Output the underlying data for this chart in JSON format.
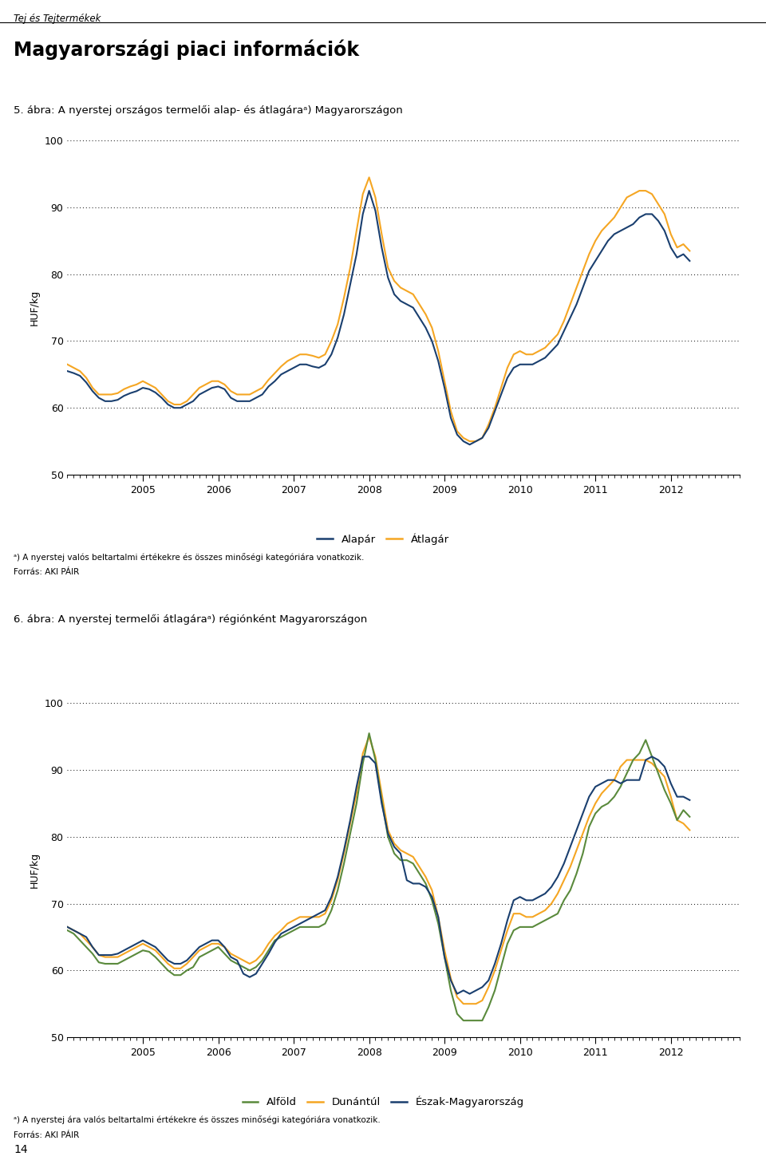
{
  "page_header": "Tej és Tejtermékek",
  "main_title": "Magyarországi piaci információk",
  "chart1_title": "5. ábra: A nyerstej országos termelői alap- és átlagáraᵃ) Magyarországon",
  "chart2_title": "6. ábra: A nyerstej termelői átlagáraᵃ) régiónként Magyarországon",
  "ylabel": "HUF/kg",
  "footnote1a": "ᵃ) A nyerstej valós beltartalmi értékekre és összes minőségi kategóriára vonatkozik.",
  "footnote1b": "Forrás: AKI PÁIR",
  "footnote2a": "ᵃ) A nyerstej ára valós beltartalmi értékekre és összes minőségi kategóriára vonatkozik.",
  "footnote2b": "Forrás: AKI PÁIR",
  "page_number": "14",
  "color_alapar": "#1a3f6f",
  "color_atlagár": "#f5a623",
  "color_alfold": "#5a8a3c",
  "color_dunantul": "#f5a623",
  "color_eszak": "#1a3f6f",
  "xtick_years": [
    2005,
    2006,
    2007,
    2008,
    2009,
    2010,
    2011,
    2012
  ],
  "xlim": [
    2004.0,
    2012.35
  ],
  "ylim": [
    50,
    100
  ],
  "yticks": [
    50,
    60,
    70,
    80,
    90,
    100
  ],
  "grid_yvals": [
    60,
    70,
    80,
    90,
    100
  ],
  "x_years": [
    2004.0,
    2004.0833,
    2004.1667,
    2004.25,
    2004.3333,
    2004.4167,
    2004.5,
    2004.5833,
    2004.6667,
    2004.75,
    2004.8333,
    2004.9167,
    2005.0,
    2005.0833,
    2005.1667,
    2005.25,
    2005.3333,
    2005.4167,
    2005.5,
    2005.5833,
    2005.6667,
    2005.75,
    2005.8333,
    2005.9167,
    2006.0,
    2006.0833,
    2006.1667,
    2006.25,
    2006.3333,
    2006.4167,
    2006.5,
    2006.5833,
    2006.6667,
    2006.75,
    2006.8333,
    2006.9167,
    2007.0,
    2007.0833,
    2007.1667,
    2007.25,
    2007.3333,
    2007.4167,
    2007.5,
    2007.5833,
    2007.6667,
    2007.75,
    2007.8333,
    2007.9167,
    2008.0,
    2008.0833,
    2008.1667,
    2008.25,
    2008.3333,
    2008.4167,
    2008.5,
    2008.5833,
    2008.6667,
    2008.75,
    2008.8333,
    2008.9167,
    2009.0,
    2009.0833,
    2009.1667,
    2009.25,
    2009.3333,
    2009.4167,
    2009.5,
    2009.5833,
    2009.6667,
    2009.75,
    2009.8333,
    2009.9167,
    2010.0,
    2010.0833,
    2010.1667,
    2010.25,
    2010.3333,
    2010.4167,
    2010.5,
    2010.5833,
    2010.6667,
    2010.75,
    2010.8333,
    2010.9167,
    2011.0,
    2011.0833,
    2011.1667,
    2011.25,
    2011.3333,
    2011.4167,
    2011.5,
    2011.5833,
    2011.6667,
    2011.75,
    2011.8333,
    2011.9167,
    2012.0,
    2012.0833,
    2012.1667,
    2012.25
  ],
  "alapar": [
    65.5,
    65.2,
    64.8,
    63.8,
    62.5,
    61.5,
    61.0,
    61.0,
    61.2,
    61.8,
    62.2,
    62.5,
    63.0,
    62.8,
    62.3,
    61.5,
    60.5,
    60.0,
    60.0,
    60.5,
    61.0,
    62.0,
    62.5,
    63.0,
    63.2,
    62.8,
    61.5,
    61.0,
    61.0,
    61.0,
    61.5,
    62.0,
    63.2,
    64.0,
    65.0,
    65.5,
    66.0,
    66.5,
    66.5,
    66.2,
    66.0,
    66.5,
    68.0,
    70.5,
    74.0,
    78.5,
    83.0,
    89.0,
    92.5,
    89.5,
    84.0,
    79.5,
    77.0,
    76.0,
    75.5,
    75.0,
    73.5,
    72.0,
    70.0,
    67.0,
    63.0,
    58.5,
    56.0,
    55.0,
    54.5,
    55.0,
    55.5,
    57.0,
    59.5,
    62.0,
    64.5,
    66.0,
    66.5,
    66.5,
    66.5,
    67.0,
    67.5,
    68.5,
    69.5,
    71.5,
    73.5,
    75.5,
    78.0,
    80.5,
    82.0,
    83.5,
    85.0,
    86.0,
    86.5,
    87.0,
    87.5,
    88.5,
    89.0,
    89.0,
    88.0,
    86.5,
    84.0,
    82.5,
    83.0,
    82.0
  ],
  "atlagár": [
    66.5,
    66.0,
    65.5,
    64.5,
    63.0,
    62.0,
    62.0,
    62.0,
    62.2,
    62.8,
    63.2,
    63.5,
    64.0,
    63.5,
    63.0,
    62.0,
    61.0,
    60.5,
    60.5,
    61.0,
    62.0,
    63.0,
    63.5,
    64.0,
    64.0,
    63.5,
    62.5,
    62.0,
    62.0,
    62.0,
    62.5,
    63.0,
    64.2,
    65.2,
    66.2,
    67.0,
    67.5,
    68.0,
    68.0,
    67.8,
    67.5,
    68.0,
    70.0,
    72.5,
    76.5,
    81.0,
    86.5,
    92.0,
    94.5,
    91.5,
    86.0,
    81.0,
    79.0,
    78.0,
    77.5,
    77.0,
    75.5,
    74.0,
    72.0,
    68.5,
    64.0,
    59.5,
    56.5,
    55.5,
    55.0,
    55.0,
    55.5,
    57.5,
    60.0,
    63.0,
    66.0,
    68.0,
    68.5,
    68.0,
    68.0,
    68.5,
    69.0,
    70.0,
    71.0,
    73.0,
    75.5,
    78.0,
    80.5,
    83.0,
    85.0,
    86.5,
    87.5,
    88.5,
    90.0,
    91.5,
    92.0,
    92.5,
    92.5,
    92.0,
    90.5,
    89.0,
    86.0,
    84.0,
    84.5,
    83.5
  ],
  "alfold": [
    66.0,
    65.5,
    64.5,
    63.5,
    62.5,
    61.2,
    61.0,
    61.0,
    61.0,
    61.5,
    62.0,
    62.5,
    63.0,
    62.8,
    62.0,
    61.0,
    60.0,
    59.3,
    59.3,
    60.0,
    60.5,
    62.0,
    62.5,
    63.0,
    63.5,
    62.5,
    61.5,
    61.0,
    60.5,
    60.0,
    60.5,
    61.5,
    63.0,
    64.5,
    65.0,
    65.5,
    66.0,
    66.5,
    66.5,
    66.5,
    66.5,
    67.0,
    69.0,
    72.0,
    76.0,
    80.5,
    85.0,
    91.0,
    95.5,
    91.5,
    85.5,
    80.0,
    77.5,
    76.5,
    76.5,
    76.0,
    74.5,
    73.0,
    70.5,
    67.0,
    62.0,
    57.0,
    53.5,
    52.5,
    52.5,
    52.5,
    52.5,
    54.5,
    57.0,
    60.5,
    64.0,
    66.0,
    66.5,
    66.5,
    66.5,
    67.0,
    67.5,
    68.0,
    68.5,
    70.5,
    72.0,
    74.5,
    77.5,
    81.5,
    83.5,
    84.5,
    85.0,
    86.0,
    87.5,
    89.5,
    91.5,
    92.5,
    94.5,
    92.0,
    89.5,
    87.0,
    85.0,
    82.5,
    84.0,
    83.0
  ],
  "dunantul": [
    66.5,
    66.0,
    65.5,
    64.5,
    63.5,
    62.3,
    62.0,
    62.0,
    62.0,
    62.5,
    63.0,
    63.5,
    64.0,
    63.5,
    63.0,
    62.0,
    61.0,
    60.3,
    60.3,
    61.0,
    62.0,
    63.0,
    63.5,
    64.0,
    64.0,
    63.5,
    62.5,
    62.0,
    61.5,
    61.0,
    61.5,
    62.5,
    64.0,
    65.2,
    66.0,
    67.0,
    67.5,
    68.0,
    68.0,
    68.0,
    68.0,
    68.5,
    70.5,
    73.5,
    77.5,
    82.0,
    86.5,
    92.5,
    95.0,
    92.0,
    86.5,
    81.0,
    79.0,
    78.0,
    77.5,
    77.0,
    75.5,
    74.0,
    72.0,
    68.0,
    63.0,
    58.8,
    56.0,
    55.0,
    55.0,
    55.0,
    55.5,
    57.5,
    60.0,
    63.0,
    66.0,
    68.5,
    68.5,
    68.0,
    68.0,
    68.5,
    69.0,
    70.0,
    71.5,
    73.5,
    75.5,
    78.0,
    80.5,
    83.0,
    85.0,
    86.5,
    87.5,
    88.5,
    90.5,
    91.5,
    91.5,
    91.5,
    91.5,
    91.0,
    90.0,
    89.0,
    86.0,
    82.5,
    82.0,
    81.0
  ],
  "eszak": [
    66.5,
    66.0,
    65.5,
    65.0,
    63.5,
    62.3,
    62.3,
    62.3,
    62.5,
    63.0,
    63.5,
    64.0,
    64.5,
    64.0,
    63.5,
    62.5,
    61.5,
    61.0,
    61.0,
    61.5,
    62.5,
    63.5,
    64.0,
    64.5,
    64.5,
    63.5,
    62.0,
    61.5,
    59.5,
    59.0,
    59.5,
    61.0,
    62.5,
    64.2,
    65.5,
    66.0,
    66.5,
    67.0,
    67.5,
    68.0,
    68.5,
    69.0,
    71.0,
    74.0,
    78.0,
    82.5,
    87.5,
    92.0,
    92.0,
    91.0,
    85.0,
    80.5,
    78.5,
    77.5,
    73.5,
    73.0,
    73.0,
    72.5,
    71.0,
    68.0,
    62.0,
    58.5,
    56.5,
    57.0,
    56.5,
    57.0,
    57.5,
    58.5,
    61.0,
    64.0,
    67.5,
    70.5,
    71.0,
    70.5,
    70.5,
    71.0,
    71.5,
    72.5,
    74.0,
    76.0,
    78.5,
    81.0,
    83.5,
    86.0,
    87.5,
    88.0,
    88.5,
    88.5,
    88.0,
    88.5,
    88.5,
    88.5,
    91.5,
    92.0,
    91.5,
    90.5,
    88.0,
    86.0,
    86.0,
    85.5
  ]
}
